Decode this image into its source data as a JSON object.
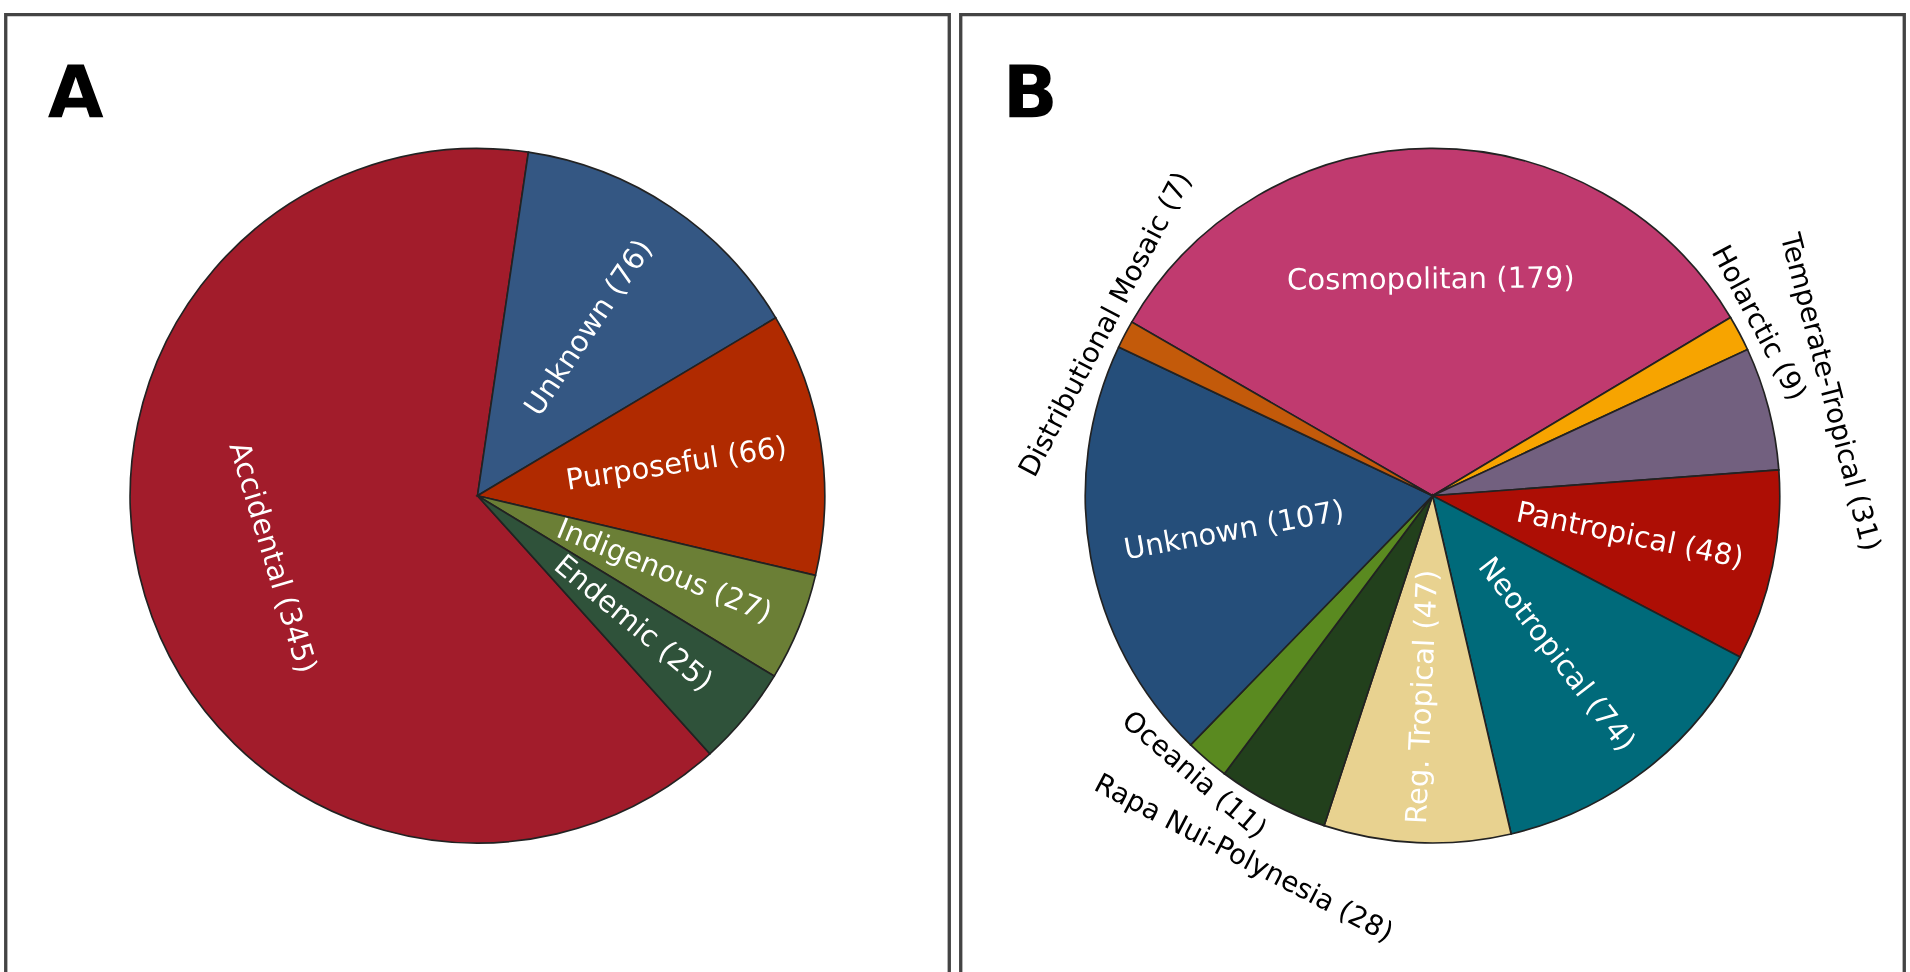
{
  "chart_data": [
    {
      "type": "pie",
      "title": "A",
      "categories": [
        "Accidental (345)",
        "Unknown (76)",
        "Purposeful (66)",
        "Indigenous (27)",
        "Endemic (25)"
      ],
      "values": [
        345,
        76,
        66,
        27,
        25
      ],
      "colors": [
        "#a21c2b",
        "#345783",
        "#b02a00",
        "#6b7f36",
        "#2f523a"
      ]
    },
    {
      "type": "pie",
      "title": "B",
      "categories": [
        "Cosmopolitan (179)",
        "Holarctic (9)",
        "Temperate-Tropical (31)",
        "Pantropical (48)",
        "Neotropical (74)",
        "Reg. Tropical (47)",
        "Rapa Nui-Polynesia (28)",
        "Oceania (11)",
        "Unknown (107)",
        "Distributional Mosaic (7)"
      ],
      "values": [
        179,
        9,
        31,
        48,
        74,
        47,
        28,
        11,
        107,
        7
      ],
      "colors": [
        "#c03a6f",
        "#f7a400",
        "#72607f",
        "#ad0e05",
        "#006a7a",
        "#e8d290",
        "#22401c",
        "#5a8a20",
        "#254e7a",
        "#c35a0a"
      ]
    }
  ]
}
